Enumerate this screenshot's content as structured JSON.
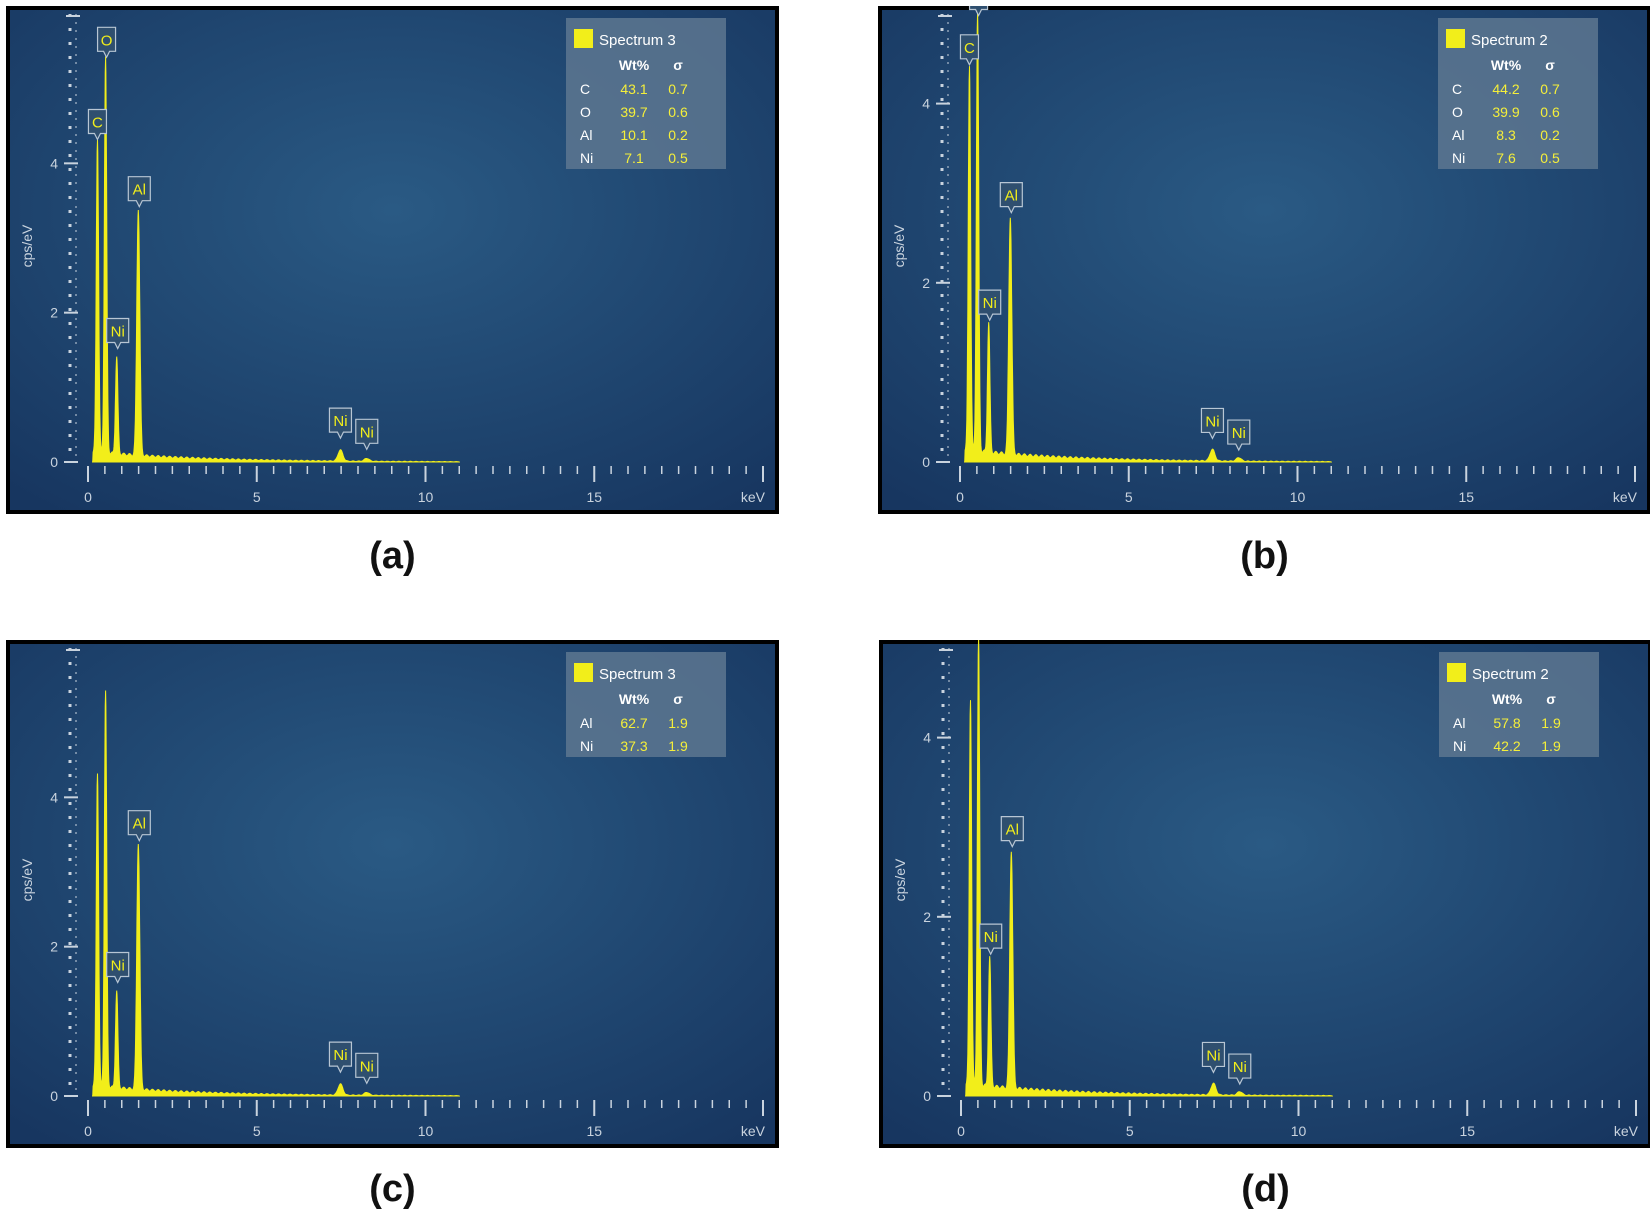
{
  "colors": {
    "background_center": "#2a5a84",
    "background_edge": "#173660",
    "spectrum": "#f2ee1a",
    "axis": "#c9d3de",
    "legend_bg": "#5d7791",
    "legend_value": "#f5ef3a"
  },
  "chart_data": [
    {
      "type": "line",
      "panel_label": "(a)",
      "xlabel": "keV",
      "ylabel": "cps/eV",
      "xlim": [
        0,
        20
      ],
      "ylim": [
        0,
        6
      ],
      "x_ticks": [
        0,
        5,
        10,
        15
      ],
      "y_ticks": [
        0,
        2,
        4
      ],
      "legend": {
        "title": "Spectrum 3",
        "headers": [
          "Wt%",
          "σ"
        ],
        "rows": [
          {
            "element": "C",
            "wt": "43.1",
            "sigma": "0.7"
          },
          {
            "element": "O",
            "wt": "39.7",
            "sigma": "0.6"
          },
          {
            "element": "Al",
            "wt": "10.1",
            "sigma": "0.2"
          },
          {
            "element": "Ni",
            "wt": "7.1",
            "sigma": "0.5"
          }
        ]
      },
      "peaks": [
        {
          "keV": 0.28,
          "height": 4.2
        },
        {
          "keV": 0.52,
          "height": 5.3
        },
        {
          "keV": 0.85,
          "height": 1.3
        },
        {
          "keV": 1.49,
          "height": 3.3
        },
        {
          "keV": 7.48,
          "height": 0.15
        },
        {
          "keV": 8.26,
          "height": 0.04
        }
      ],
      "peak_labels": [
        {
          "text": "C",
          "keV": 0.28,
          "cps": 4.4
        },
        {
          "text": "O",
          "keV": 0.55,
          "cps": 5.5
        },
        {
          "text": "Ni",
          "keV": 0.88,
          "cps": 1.6
        },
        {
          "text": "Al",
          "keV": 1.52,
          "cps": 3.5
        },
        {
          "text": "Ni",
          "keV": 7.48,
          "cps": 0.4
        },
        {
          "text": "Ni",
          "keV": 8.26,
          "cps": 0.25
        }
      ]
    },
    {
      "type": "line",
      "panel_label": "(b)",
      "xlabel": "keV",
      "ylabel": "cps/eV",
      "xlim": [
        0,
        20
      ],
      "ylim": [
        0,
        5
      ],
      "x_ticks": [
        0,
        5,
        10,
        15
      ],
      "y_ticks": [
        0,
        2,
        4
      ],
      "legend": {
        "title": "Spectrum 2",
        "headers": [
          "Wt%",
          "σ"
        ],
        "rows": [
          {
            "element": "C",
            "wt": "44.2",
            "sigma": "0.7"
          },
          {
            "element": "O",
            "wt": "39.9",
            "sigma": "0.6"
          },
          {
            "element": "Al",
            "wt": "8.3",
            "sigma": "0.2"
          },
          {
            "element": "Ni",
            "wt": "7.6",
            "sigma": "0.5"
          }
        ]
      },
      "peaks": [
        {
          "keV": 0.28,
          "height": 4.3
        },
        {
          "keV": 0.52,
          "height": 4.9
        },
        {
          "keV": 0.85,
          "height": 1.45
        },
        {
          "keV": 1.49,
          "height": 2.65
        },
        {
          "keV": 7.48,
          "height": 0.13
        },
        {
          "keV": 8.26,
          "height": 0.04
        }
      ],
      "peak_labels": [
        {
          "text": "C",
          "keV": 0.28,
          "cps": 4.5
        },
        {
          "text": "O",
          "keV": 0.55,
          "cps": 5.05
        },
        {
          "text": "Ni",
          "keV": 0.88,
          "cps": 1.65
        },
        {
          "text": "Al",
          "keV": 1.52,
          "cps": 2.85
        },
        {
          "text": "Ni",
          "keV": 7.48,
          "cps": 0.33
        },
        {
          "text": "Ni",
          "keV": 8.26,
          "cps": 0.2
        }
      ]
    },
    {
      "type": "line",
      "panel_label": "(c)",
      "xlabel": "keV",
      "ylabel": "cps/eV",
      "xlim": [
        0,
        20
      ],
      "ylim": [
        0,
        6
      ],
      "x_ticks": [
        0,
        5,
        10,
        15
      ],
      "y_ticks": [
        0,
        2,
        4
      ],
      "legend": {
        "title": "Spectrum 3",
        "headers": [
          "Wt%",
          "σ"
        ],
        "rows": [
          {
            "element": "Al",
            "wt": "62.7",
            "sigma": "1.9"
          },
          {
            "element": "Ni",
            "wt": "37.3",
            "sigma": "1.9"
          }
        ]
      },
      "peaks": [
        {
          "keV": 0.28,
          "height": 4.2
        },
        {
          "keV": 0.52,
          "height": 5.3
        },
        {
          "keV": 0.85,
          "height": 1.3
        },
        {
          "keV": 1.49,
          "height": 3.3
        },
        {
          "keV": 7.48,
          "height": 0.15
        },
        {
          "keV": 8.26,
          "height": 0.04
        }
      ],
      "peak_labels": [
        {
          "text": "Ni",
          "keV": 0.88,
          "cps": 1.6
        },
        {
          "text": "Al",
          "keV": 1.52,
          "cps": 3.5
        },
        {
          "text": "Ni",
          "keV": 7.48,
          "cps": 0.4
        },
        {
          "text": "Ni",
          "keV": 8.26,
          "cps": 0.25
        }
      ]
    },
    {
      "type": "line",
      "panel_label": "(d)",
      "xlabel": "keV",
      "ylabel": "cps/eV",
      "xlim": [
        0,
        20
      ],
      "ylim": [
        0,
        5
      ],
      "x_ticks": [
        0,
        5,
        10,
        15
      ],
      "y_ticks": [
        0,
        2,
        4
      ],
      "legend": {
        "title": "Spectrum 2",
        "headers": [
          "Wt%",
          "σ"
        ],
        "rows": [
          {
            "element": "Al",
            "wt": "57.8",
            "sigma": "1.9"
          },
          {
            "element": "Ni",
            "wt": "42.2",
            "sigma": "1.9"
          }
        ]
      },
      "peaks": [
        {
          "keV": 0.28,
          "height": 4.3
        },
        {
          "keV": 0.52,
          "height": 5.0
        },
        {
          "keV": 0.85,
          "height": 1.45
        },
        {
          "keV": 1.49,
          "height": 2.65
        },
        {
          "keV": 7.48,
          "height": 0.13
        },
        {
          "keV": 8.26,
          "height": 0.04
        }
      ],
      "peak_labels": [
        {
          "text": "Ni",
          "keV": 0.88,
          "cps": 1.65
        },
        {
          "text": "Al",
          "keV": 1.52,
          "cps": 2.85
        },
        {
          "text": "Ni",
          "keV": 7.48,
          "cps": 0.33
        },
        {
          "text": "Ni",
          "keV": 8.26,
          "cps": 0.2
        }
      ]
    }
  ]
}
